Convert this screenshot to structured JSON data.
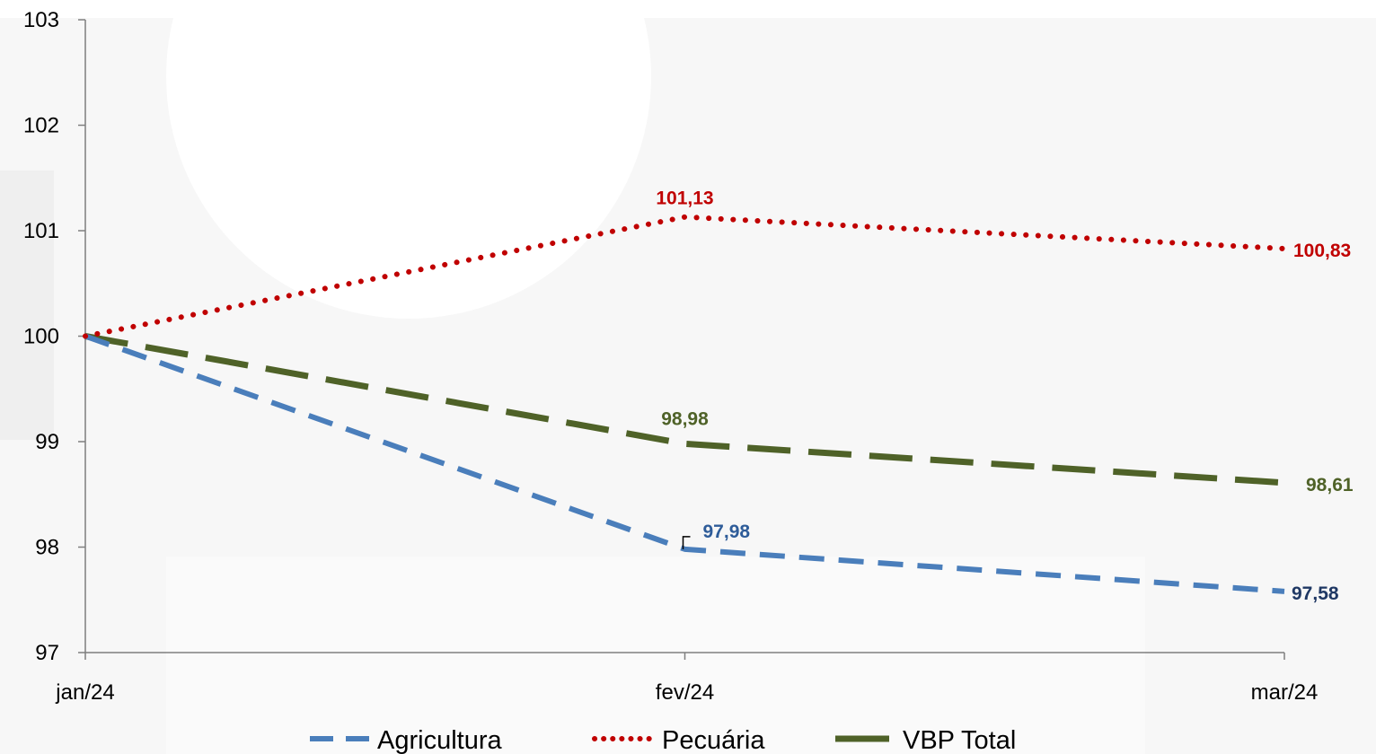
{
  "chart_data": {
    "type": "line",
    "categories": [
      "jan/24",
      "fev/24",
      "mar/24"
    ],
    "ylim": [
      97,
      103
    ],
    "yticks": [
      "103",
      "102",
      "101",
      "100",
      "99",
      "98",
      "97"
    ],
    "grid": false,
    "legend_position": "bottom",
    "series": [
      {
        "name": "Agricultura",
        "values": [
          100,
          97.98,
          97.58
        ],
        "color": "#4A7EBB",
        "style": "dashed",
        "labels": [
          "",
          "97,98",
          "97,58"
        ],
        "label_colors": [
          "",
          "#2E5C99",
          "#1F3864"
        ]
      },
      {
        "name": "Pecuária",
        "values": [
          100,
          101.13,
          100.83
        ],
        "color": "#C00000",
        "style": "dotted",
        "labels": [
          "",
          "101,13",
          "100,83"
        ],
        "label_colors": [
          "",
          "#C00000",
          "#C00000"
        ]
      },
      {
        "name": "VBP Total",
        "values": [
          100,
          98.98,
          98.61
        ],
        "color": "#4F6228",
        "style": "long-dashed",
        "labels": [
          "",
          "98,98",
          "98,61"
        ],
        "label_colors": [
          "",
          "#4F6228",
          "#4F6228"
        ]
      }
    ]
  }
}
